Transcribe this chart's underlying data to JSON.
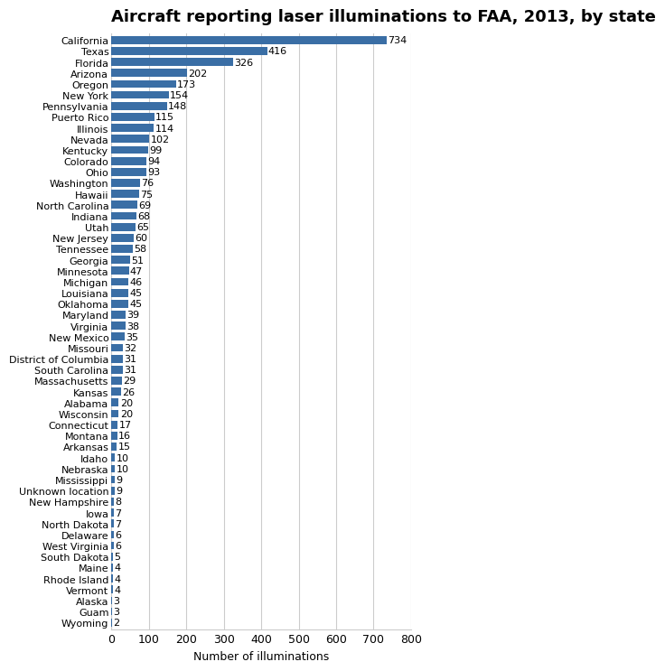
{
  "title": "Aircraft reporting laser illuminations to FAA, 2013, by state",
  "xlabel": "Number of illuminations",
  "states": [
    "California",
    "Texas",
    "Florida",
    "Arizona",
    "Oregon",
    "New York",
    "Pennsylvania",
    "Puerto Rico",
    "Illinois",
    "Nevada",
    "Kentucky",
    "Colorado",
    "Ohio",
    "Washington",
    "Hawaii",
    "North Carolina",
    "Indiana",
    "Utah",
    "New Jersey",
    "Tennessee",
    "Georgia",
    "Minnesota",
    "Michigan",
    "Louisiana",
    "Oklahoma",
    "Maryland",
    "Virginia",
    "New Mexico",
    "Missouri",
    "District of Columbia",
    "South Carolina",
    "Massachusetts",
    "Kansas",
    "Alabama",
    "Wisconsin",
    "Connecticut",
    "Montana",
    "Arkansas",
    "Idaho",
    "Nebraska",
    "Mississippi",
    "Unknown location",
    "New Hampshire",
    "Iowa",
    "North Dakota",
    "Delaware",
    "West Virginia",
    "South Dakota",
    "Maine",
    "Rhode Island",
    "Vermont",
    "Alaska",
    "Guam",
    "Wyoming"
  ],
  "values": [
    734,
    416,
    326,
    202,
    173,
    154,
    148,
    115,
    114,
    102,
    99,
    94,
    93,
    76,
    75,
    69,
    68,
    65,
    60,
    58,
    51,
    47,
    46,
    45,
    45,
    39,
    38,
    35,
    32,
    31,
    31,
    29,
    26,
    20,
    20,
    17,
    16,
    15,
    10,
    10,
    9,
    9,
    8,
    7,
    7,
    6,
    6,
    5,
    4,
    4,
    4,
    3,
    3,
    2
  ],
  "bar_color": "#3a6ea5",
  "label_color": "#000000",
  "bg_color": "#ffffff",
  "grid_color": "#cccccc",
  "xlim": [
    0,
    800
  ],
  "xticks": [
    0,
    100,
    200,
    300,
    400,
    500,
    600,
    700,
    800
  ],
  "title_fontsize": 13,
  "axis_label_fontsize": 9,
  "tick_fontsize": 9,
  "value_fontsize": 8,
  "state_fontsize": 8
}
